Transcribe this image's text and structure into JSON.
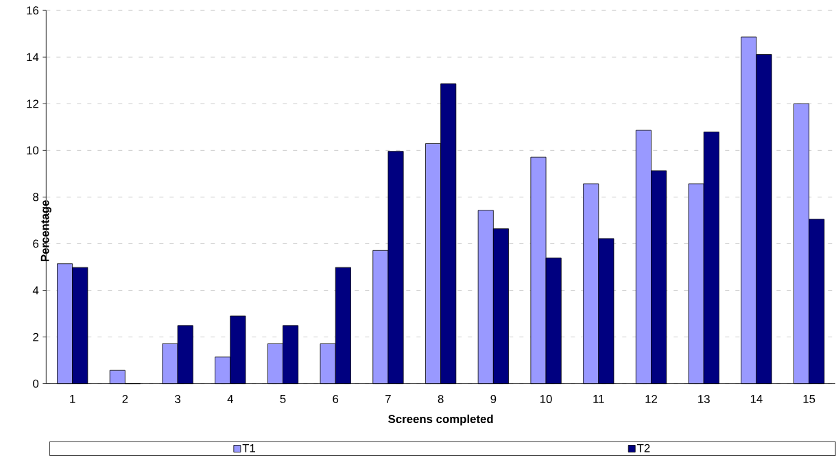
{
  "chart_data": {
    "type": "bar",
    "xlabel": "Screens completed",
    "ylabel": "Percentage",
    "categories": [
      "1",
      "2",
      "3",
      "4",
      "5",
      "6",
      "7",
      "8",
      "9",
      "10",
      "11",
      "12",
      "13",
      "14",
      "15"
    ],
    "series": [
      {
        "name": "T1",
        "color": "#9999ff",
        "values": [
          5.14,
          0.57,
          1.71,
          1.14,
          1.71,
          1.71,
          5.71,
          10.29,
          7.43,
          9.71,
          8.57,
          10.86,
          8.57,
          14.86,
          12.0
        ]
      },
      {
        "name": "T2",
        "color": "#000080",
        "values": [
          4.98,
          0,
          2.49,
          2.9,
          2.49,
          4.98,
          9.96,
          12.86,
          6.64,
          5.39,
          6.22,
          9.13,
          10.79,
          14.11,
          7.05
        ]
      }
    ],
    "ylim": [
      0,
      16
    ],
    "yticks": [
      0,
      2,
      4,
      6,
      8,
      10,
      12,
      14,
      16
    ],
    "grid": "y",
    "legend": "bottom"
  }
}
